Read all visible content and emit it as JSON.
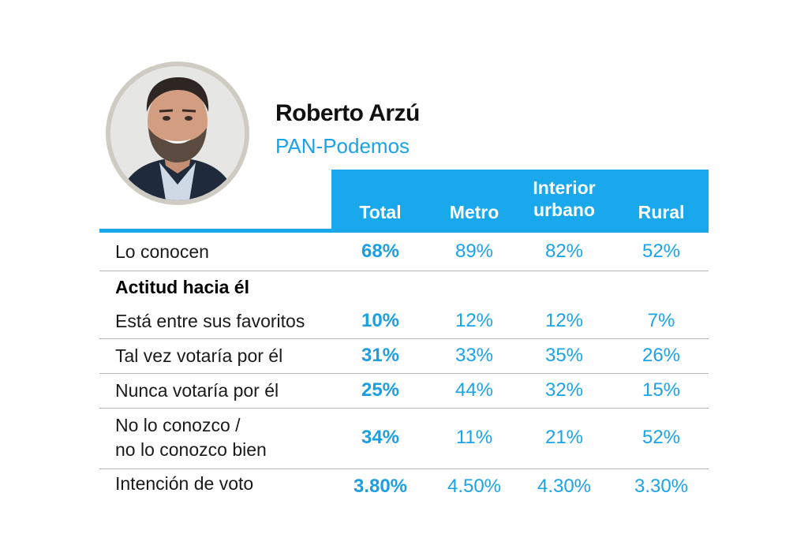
{
  "candidate": {
    "name": "Roberto Arzú",
    "party": "PAN-Podemos"
  },
  "colors": {
    "accent": "#1aa8ec",
    "rule": "#b8b8b8",
    "portrait_ring": "#cdcbc2"
  },
  "table": {
    "columns": [
      "Total",
      "Metro",
      "Interior urbano",
      "Rural"
    ],
    "columns_lines": {
      "interior_1": "Interior",
      "interior_2": "urbano"
    },
    "rows": [
      {
        "label": "Lo conocen",
        "values": [
          "68%",
          "89%",
          "82%",
          "52%"
        ]
      },
      {
        "label": "Actitud hacia él",
        "section": true
      },
      {
        "label": "Está entre sus favoritos",
        "values": [
          "10%",
          "12%",
          "12%",
          "7%"
        ]
      },
      {
        "label": "Tal vez votaría por él",
        "values": [
          "31%",
          "33%",
          "35%",
          "26%"
        ]
      },
      {
        "label": "Nunca votaría por él",
        "values": [
          "25%",
          "44%",
          "32%",
          "15%"
        ]
      },
      {
        "label_line1": "No lo conozco /",
        "label_line2": "no lo conozco bien",
        "values": [
          "34%",
          "11%",
          "21%",
          "52%"
        ]
      },
      {
        "label": "Intención de voto",
        "values": [
          "3.80%",
          "4.50%",
          "4.30%",
          "3.30%"
        ]
      }
    ]
  }
}
